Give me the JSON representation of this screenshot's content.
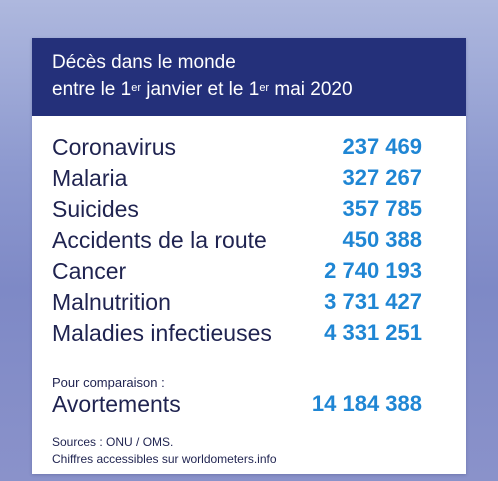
{
  "header": {
    "line1": "Décès dans le monde",
    "line2_part1": "entre le 1",
    "line2_sup1": "er",
    "line2_part2": " janvier et le 1",
    "line2_sup2": "er",
    "line2_part3": " mai 2020"
  },
  "rows": [
    {
      "label": "Coronavirus",
      "value": "237 469"
    },
    {
      "label": "Malaria",
      "value": "327 267"
    },
    {
      "label": "Suicides",
      "value": "357 785"
    },
    {
      "label": "Accidents de la route",
      "value": "450 388"
    },
    {
      "label": "Cancer",
      "value": "2 740 193"
    },
    {
      "label": "Malnutrition",
      "value": "3 731 427"
    },
    {
      "label": "Maladies infectieuses",
      "value": "4 331 251"
    }
  ],
  "comparison": {
    "note": "Pour comparaison :",
    "label": "Avortements",
    "value": "14 184 388"
  },
  "sources": {
    "line1": "Sources : ONU / OMS.",
    "line2": "Chiffres accessibles sur worldometers.info"
  },
  "colors": {
    "header_bg": "#24307a",
    "value_blue": "#1f86d4",
    "text_dark": "#1f2350"
  }
}
